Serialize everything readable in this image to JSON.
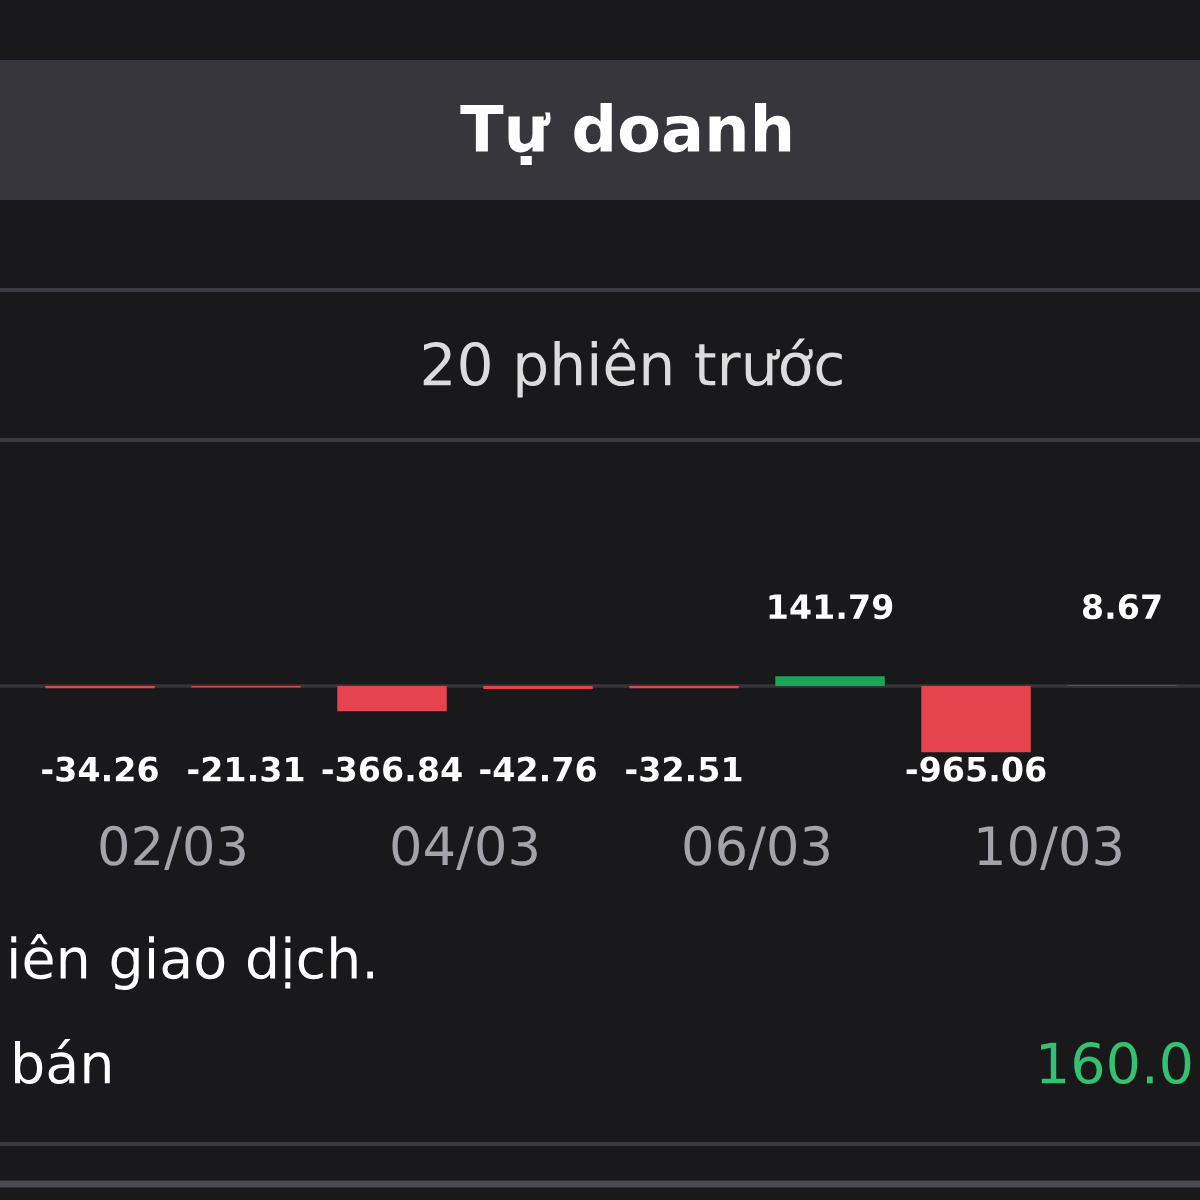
{
  "chart_data": {
    "type": "bar",
    "title": "Tự doanh",
    "subtitle": "20 phiên trước",
    "categories": [
      "02/03",
      null,
      "04/03",
      null,
      "06/03",
      null,
      "10/03",
      null
    ],
    "values": [
      -34.26,
      -21.31,
      -366.84,
      -42.76,
      -32.51,
      141.79,
      -965.06,
      8.67
    ],
    "colors": [
      "#e5434d",
      "#e5434d",
      "#e5434d",
      "#e5434d",
      "#e5434d",
      "#1aa654",
      "#e5434d",
      "#1aa654"
    ],
    "data_labels": true,
    "tick_labels": "x",
    "annotations": [
      "iên giao dịch.",
      "bán",
      "160.0"
    ]
  }
}
